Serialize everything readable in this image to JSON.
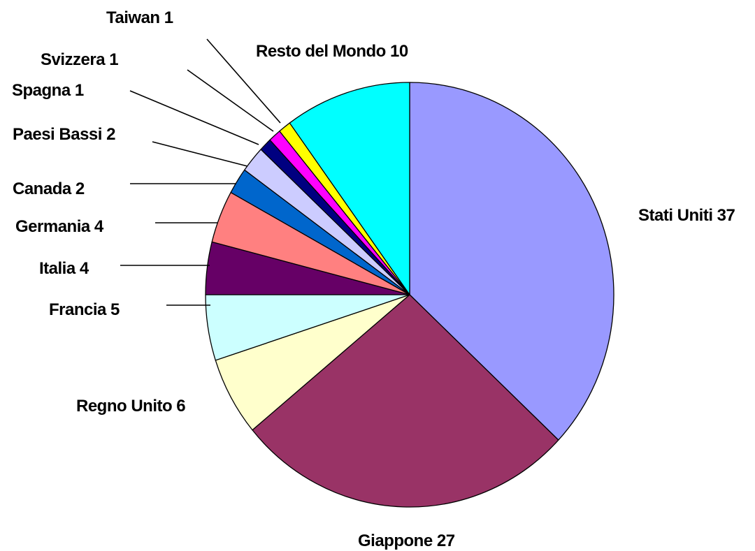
{
  "chart_data": {
    "type": "pie",
    "title": "",
    "slices": [
      {
        "label": "Stati Uniti",
        "value": 37,
        "color": "#9999ff"
      },
      {
        "label": "Giappone",
        "value": 27,
        "color": "#993366"
      },
      {
        "label": "Regno Unito",
        "value": 6,
        "color": "#ffffcc"
      },
      {
        "label": "Francia",
        "value": 5,
        "color": "#ccffff"
      },
      {
        "label": "Italia",
        "value": 4,
        "color": "#660066"
      },
      {
        "label": "Germania",
        "value": 4,
        "color": "#ff8080"
      },
      {
        "label": "Canada",
        "value": 2,
        "color": "#0066cc"
      },
      {
        "label": "Paesi Bassi",
        "value": 2,
        "color": "#ccccff"
      },
      {
        "label": "Spagna",
        "value": 1,
        "color": "#000080"
      },
      {
        "label": "Svizzera",
        "value": 1,
        "color": "#ff00ff"
      },
      {
        "label": "Taiwan",
        "value": 1,
        "color": "#ffff00"
      },
      {
        "label": "Resto del Mondo",
        "value": 10,
        "color": "#00ffff"
      }
    ],
    "legend": "none",
    "data_labels": "label and value, outside with leader lines"
  }
}
